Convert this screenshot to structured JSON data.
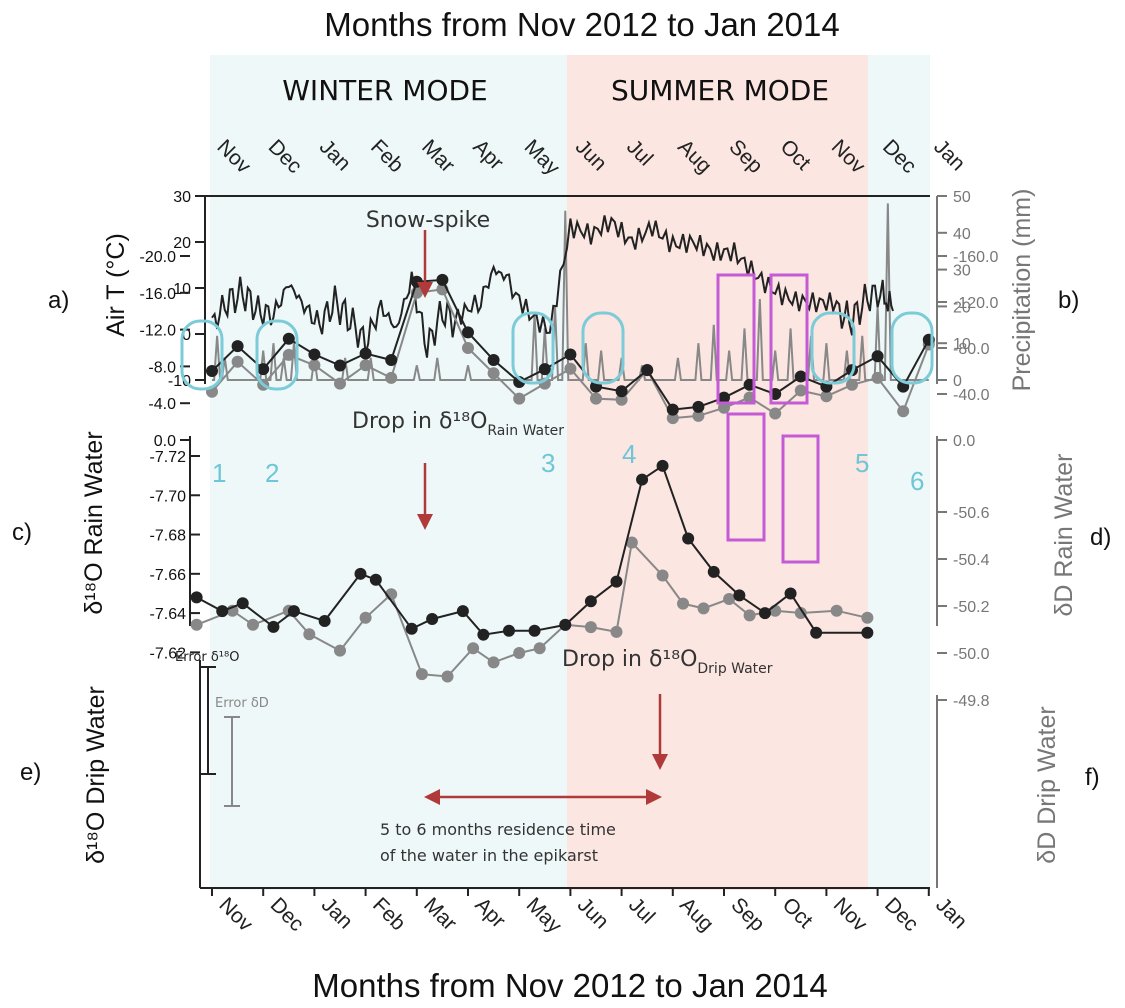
{
  "title_top": "Months from Nov 2012 to Jan 2014",
  "title_bottom": "Months from Nov 2012 to Jan 2014",
  "modes": {
    "winter": "WINTER MODE",
    "summer": "SUMMER MODE"
  },
  "colors": {
    "winter_bg": "#eef8f8",
    "summer_bg": "#fbe6e1",
    "dark": "#222222",
    "gray": "#888888",
    "cyan": "#7ccbd8",
    "purple": "#c45ad6",
    "arrow": "#b03a3a"
  },
  "months": [
    "Nov",
    "Dec",
    "Jan",
    "Feb",
    "Mar",
    "Apr",
    "May",
    "Jun",
    "Jul",
    "Aug",
    "Sep",
    "Oct",
    "Nov",
    "Dec",
    "Jan"
  ],
  "panel_labels": {
    "a": "a)",
    "b": "b)",
    "c": "c)",
    "d": "d)",
    "e": "e)",
    "f": "f)"
  },
  "annotations": {
    "snow_spike": "Snow-spike",
    "drop_rain": "Drop in δ¹⁸O",
    "drop_rain_sub": "Rain Water",
    "drop_drip": "Drop in δ¹⁸O",
    "drop_drip_sub": "Drip Water",
    "residence_line1": "5 to 6 months residence time",
    "residence_line2": "of the water in the epikarst",
    "error_o": "Error δ¹⁸O",
    "error_d": "Error δD",
    "event_numbers": [
      "1",
      "2",
      "3",
      "4",
      "5",
      "6"
    ]
  },
  "chart_data": [
    {
      "type": "line",
      "panel": "a/b",
      "ylabel": "Air T (°C)",
      "ylabel_right": "Precipitation (mm)",
      "ylim": [
        -10,
        30
      ],
      "ylim_right": [
        0,
        50
      ],
      "yticks": [
        "30",
        "20",
        "10",
        "0",
        "-10"
      ],
      "yticks_right": [
        "50",
        "40",
        "30",
        "20",
        "10",
        "0"
      ],
      "series": [
        {
          "name": "Air T",
          "anchors_month_value": [
            [
              0,
              2
            ],
            [
              0.3,
              7
            ],
            [
              0.6,
              9
            ],
            [
              0.9,
              5
            ],
            [
              1.2,
              4
            ],
            [
              1.5,
              11
            ],
            [
              1.8,
              6
            ],
            [
              2.1,
              2
            ],
            [
              2.4,
              7
            ],
            [
              2.7,
              3
            ],
            [
              3.0,
              -2
            ],
            [
              3.3,
              6
            ],
            [
              3.6,
              1
            ],
            [
              3.9,
              12
            ],
            [
              4.2,
              -3
            ],
            [
              4.5,
              5
            ],
            [
              4.8,
              2
            ],
            [
              5.2,
              6
            ],
            [
              5.5,
              14
            ],
            [
              5.8,
              12
            ],
            [
              6.2,
              6
            ],
            [
              6.6,
              1
            ],
            [
              7.0,
              22
            ],
            [
              7.4,
              20
            ],
            [
              7.8,
              24
            ],
            [
              8.2,
              21
            ],
            [
              8.6,
              25
            ],
            [
              9.0,
              20
            ],
            [
              9.4,
              19
            ],
            [
              9.8,
              16
            ],
            [
              10.2,
              17
            ],
            [
              10.6,
              14
            ],
            [
              11.0,
              11
            ],
            [
              11.4,
              8
            ],
            [
              11.8,
              6
            ],
            [
              12.2,
              5
            ],
            [
              12.5,
              3
            ],
            [
              12.8,
              8
            ],
            [
              13.1,
              9
            ],
            [
              13.3,
              5
            ]
          ]
        },
        {
          "name": "Precipitation",
          "spikes_month_mm": [
            [
              0.1,
              12
            ],
            [
              0.25,
              6
            ],
            [
              1.0,
              8
            ],
            [
              1.2,
              10
            ],
            [
              1.4,
              6
            ],
            [
              1.6,
              10
            ],
            [
              2.0,
              6
            ],
            [
              2.6,
              6
            ],
            [
              3.1,
              6
            ],
            [
              4.0,
              4
            ],
            [
              4.4,
              6
            ],
            [
              5.0,
              4
            ],
            [
              6.3,
              18
            ],
            [
              6.5,
              14
            ],
            [
              6.7,
              20
            ],
            [
              6.9,
              46
            ],
            [
              7.3,
              10
            ],
            [
              7.6,
              8
            ],
            [
              8.0,
              6
            ],
            [
              8.4,
              4
            ],
            [
              9.1,
              6
            ],
            [
              9.5,
              10
            ],
            [
              9.8,
              15
            ],
            [
              10.1,
              8
            ],
            [
              10.4,
              14
            ],
            [
              10.7,
              22
            ],
            [
              11.0,
              8
            ],
            [
              11.3,
              14
            ],
            [
              11.7,
              12
            ],
            [
              12.0,
              10
            ],
            [
              12.4,
              8
            ],
            [
              12.7,
              12
            ],
            [
              13.0,
              20
            ],
            [
              13.2,
              48
            ]
          ]
        }
      ]
    },
    {
      "type": "line",
      "panel": "c/d",
      "ylabel": "δ¹⁸O Rain Water",
      "ylabel_right": "δD Rain Water",
      "ylim": [
        -20,
        0
      ],
      "ylim_right": [
        -160,
        0
      ],
      "yticks": [
        "0.0",
        "-4.0",
        "-8.0",
        "-12.0",
        "-16.0",
        "-20.0"
      ],
      "yticks_right": [
        "0.0",
        "-40.0",
        "-80.0",
        "-120.0",
        "-160.0"
      ],
      "x_months": [
        0,
        0.5,
        1,
        1.5,
        2,
        2.5,
        3,
        3.5,
        4,
        4.5,
        5,
        5.5,
        6,
        6.5,
        7,
        7.5,
        8,
        8.5,
        9,
        9.5,
        10,
        10.5,
        11,
        11.5,
        12,
        12.5,
        13,
        13.5,
        14
      ],
      "series": [
        {
          "name": "δ¹⁸O",
          "values": [
            -7.5,
            -10.2,
            -7.7,
            -11.0,
            -9.3,
            -8.1,
            -9.4,
            -8.7,
            -17.2,
            -17.4,
            -11.7,
            -8.7,
            -6.3,
            -7.7,
            -9.3,
            -5.8,
            -5.3,
            -7.6,
            -3.3,
            -3.6,
            -4.6,
            -6.0,
            -5.0,
            -6.9,
            -5.8,
            -7.6,
            -9.1,
            -5.8,
            -10.9
          ]
        },
        {
          "name": "δD",
          "values": [
            -42,
            -68,
            -48,
            -74,
            -65,
            -49,
            -65,
            -54,
            -128,
            -131,
            -80,
            -58,
            -36,
            -49,
            -62,
            -36,
            -35,
            -61,
            -19,
            -21,
            -28,
            -37,
            -23,
            -43,
            -38,
            -48,
            -54,
            -25,
            -83
          ]
        }
      ]
    },
    {
      "type": "line",
      "panel": "e/f",
      "ylabel": "δ¹⁸O Drip Water",
      "ylabel_right": "δD Drip Water",
      "ylim": [
        -7.72,
        -7.61
      ],
      "ylim_right": [
        -50.6,
        -49.7
      ],
      "yticks": [
        "-7.62",
        "-7.64",
        "-7.66",
        "-7.68",
        "-7.70",
        "-7.72"
      ],
      "yticks_right": [
        "-49.8",
        "-50.0",
        "-50.2",
        "-50.4",
        "-50.6"
      ],
      "error_bars": {
        "δ18O": [
          -7.674,
          -7.625
        ],
        "δD": [
          -50.39,
          -49.98
        ]
      },
      "series": [
        {
          "name": "δ¹⁸O",
          "x_months": [
            -0.3,
            0.2,
            0.6,
            1.2,
            1.6,
            2.2,
            2.9,
            3.2,
            3.9,
            4.3,
            4.9,
            5.3,
            5.8,
            6.3,
            6.9,
            7.4,
            7.9,
            8.4,
            8.8,
            9.3,
            9.8,
            10.3,
            10.8,
            11.3,
            11.8,
            12.8
          ],
          "values": [
            -7.648,
            -7.641,
            -7.645,
            -7.633,
            -7.641,
            -7.636,
            -7.66,
            -7.657,
            -7.632,
            -7.637,
            -7.641,
            -7.629,
            -7.631,
            -7.631,
            -7.634,
            -7.646,
            -7.656,
            -7.708,
            -7.715,
            -7.678,
            -7.661,
            -7.649,
            -7.64,
            -7.65,
            -7.63,
            -7.63
          ]
        },
        {
          "name": "δD",
          "x_months": [
            -0.3,
            0.4,
            0.8,
            1.5,
            1.9,
            2.5,
            3.0,
            3.5,
            4.1,
            4.6,
            5.1,
            5.5,
            6.0,
            6.4,
            6.9,
            7.4,
            7.9,
            8.2,
            8.8,
            9.2,
            9.6,
            10.1,
            10.5,
            11.0,
            11.5,
            12.2,
            12.8
          ],
          "values": [
            -50.12,
            -50.18,
            -50.12,
            -50.18,
            -50.08,
            -50.01,
            -50.15,
            -50.25,
            -49.91,
            -49.9,
            -50.02,
            -49.96,
            -50.0,
            -50.02,
            -50.12,
            -50.11,
            -50.09,
            -50.47,
            -50.33,
            -50.21,
            -50.19,
            -50.23,
            -50.16,
            -50.18,
            -50.17,
            -50.18,
            -50.15
          ]
        }
      ]
    }
  ]
}
